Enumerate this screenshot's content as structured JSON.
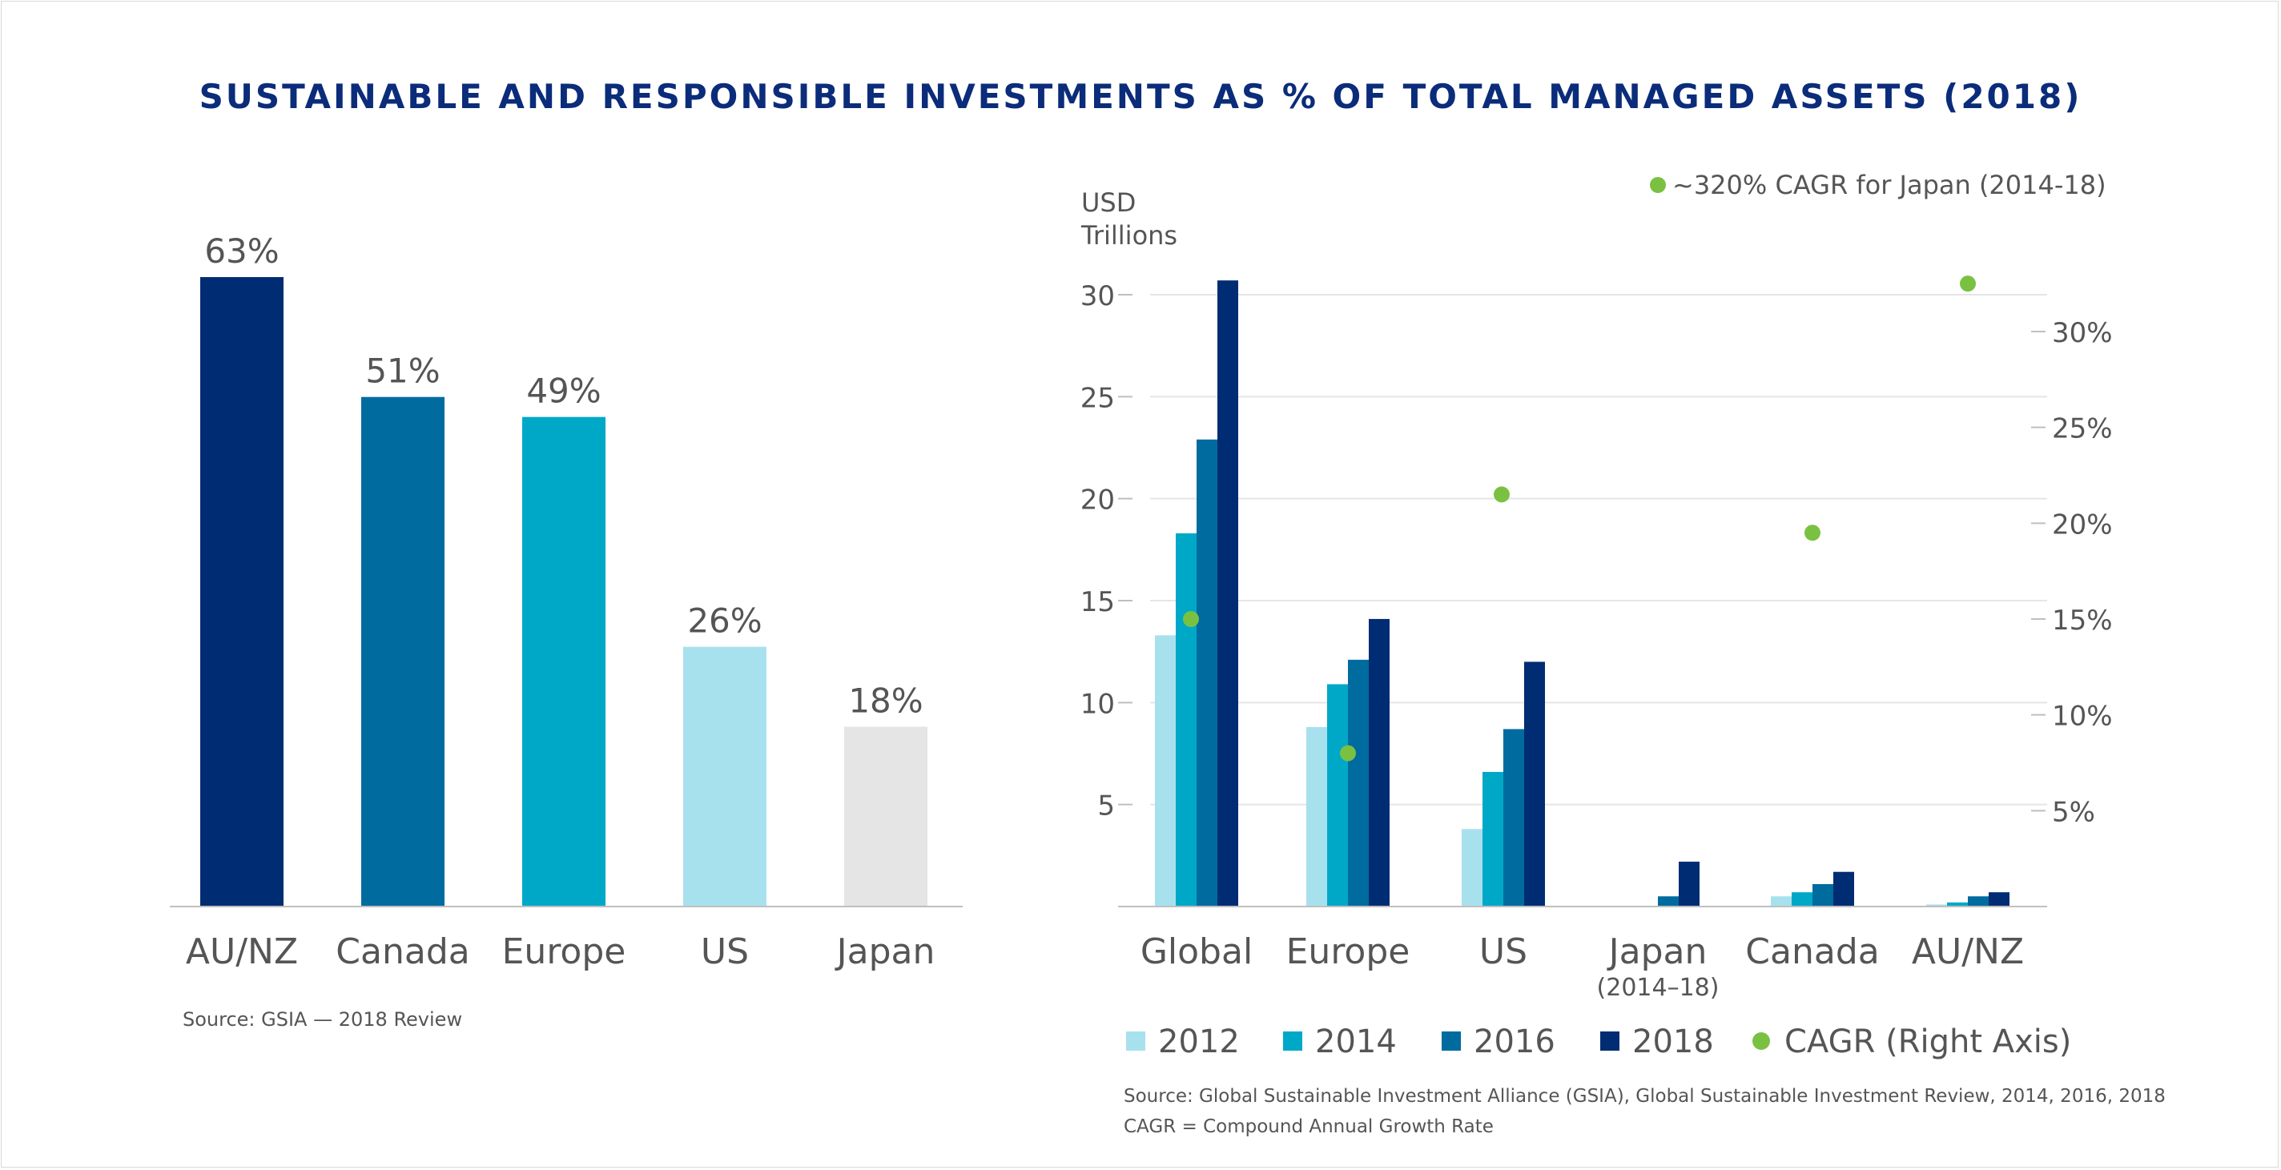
{
  "title": "SUSTAINABLE AND RESPONSIBLE INVESTMENTS AS % OF TOTAL MANAGED ASSETS (2018)",
  "colors": {
    "title": "#0b2c7a",
    "s2012": "#a8e1ee",
    "s2014": "#00a8c8",
    "s2016": "#006b9f",
    "s2018": "#002c73",
    "cagr": "#7ac142",
    "japan_bar": "#e5e5e5",
    "text": "#555555",
    "grid": "#e5e5e5"
  },
  "chart_data": [
    {
      "type": "bar",
      "categories": [
        "AU/NZ",
        "Canada",
        "Europe",
        "US",
        "Japan"
      ],
      "values": [
        63,
        51,
        49,
        26,
        18
      ],
      "value_labels": [
        "63%",
        "51%",
        "49%",
        "26%",
        "18%"
      ],
      "ylim": [
        0,
        63
      ],
      "source": "Source: GSIA — 2018 Review"
    },
    {
      "type": "bar",
      "ylabel_line1": "USD",
      "ylabel_line2": "Trillions",
      "categories": [
        "Global",
        "Europe",
        "US",
        "Japan",
        "Canada",
        "AU/NZ"
      ],
      "category_sublabels": [
        "",
        "",
        "",
        "(2014–18)",
        "",
        ""
      ],
      "y_ticks": [
        "5",
        "10",
        "15",
        "20",
        "25",
        "30"
      ],
      "y2_ticks": [
        "5%",
        "10%",
        "15%",
        "20%",
        "25%",
        "30%"
      ],
      "ylim": [
        0,
        30
      ],
      "y2lim": [
        0,
        32
      ],
      "series": [
        {
          "name": "2012",
          "values": [
            13.3,
            8.8,
            3.8,
            0,
            0.5,
            0.1
          ]
        },
        {
          "name": "2014",
          "values": [
            18.3,
            10.9,
            6.6,
            0.01,
            0.7,
            0.2
          ]
        },
        {
          "name": "2016",
          "values": [
            22.9,
            12.1,
            8.7,
            0.5,
            1.1,
            0.5
          ]
        },
        {
          "name": "2018",
          "values": [
            30.7,
            14.1,
            12.0,
            2.2,
            1.7,
            0.7
          ]
        }
      ],
      "cagr": {
        "name": "CAGR (Right Axis)",
        "values": [
          15,
          8,
          21.5,
          320,
          19.5,
          32.5
        ]
      },
      "annotation": "~320% CAGR for Japan (2014-18)",
      "source_line1": "Source: Global Sustainable Investment Alliance (GSIA), Global Sustainable Investment Review, 2014, 2016, 2018",
      "source_line2": "CAGR = Compound Annual Growth Rate"
    }
  ]
}
